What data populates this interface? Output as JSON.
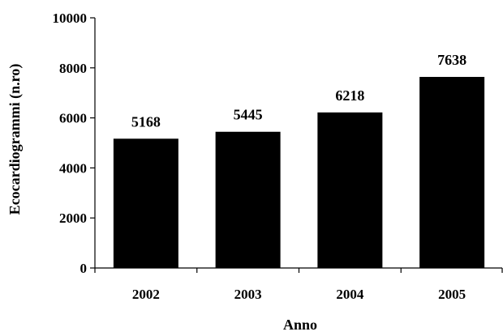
{
  "chart_data": {
    "type": "bar",
    "categories": [
      "2002",
      "2003",
      "2004",
      "2005"
    ],
    "values": [
      5168,
      5445,
      6218,
      7638
    ],
    "data_labels": [
      "5168",
      "5445",
      "6218",
      "7638"
    ],
    "title": "",
    "xlabel": "Anno",
    "ylabel": "Ecocardiogrammi (n.ro)",
    "ylim": [
      0,
      10000
    ],
    "yticks": [
      0,
      2000,
      4000,
      6000,
      8000,
      10000
    ],
    "ytick_labels": [
      "0",
      "2000",
      "4000",
      "6000",
      "8000",
      "10000"
    ],
    "grid": false,
    "legend": "none",
    "bar_color": "#000000"
  }
}
